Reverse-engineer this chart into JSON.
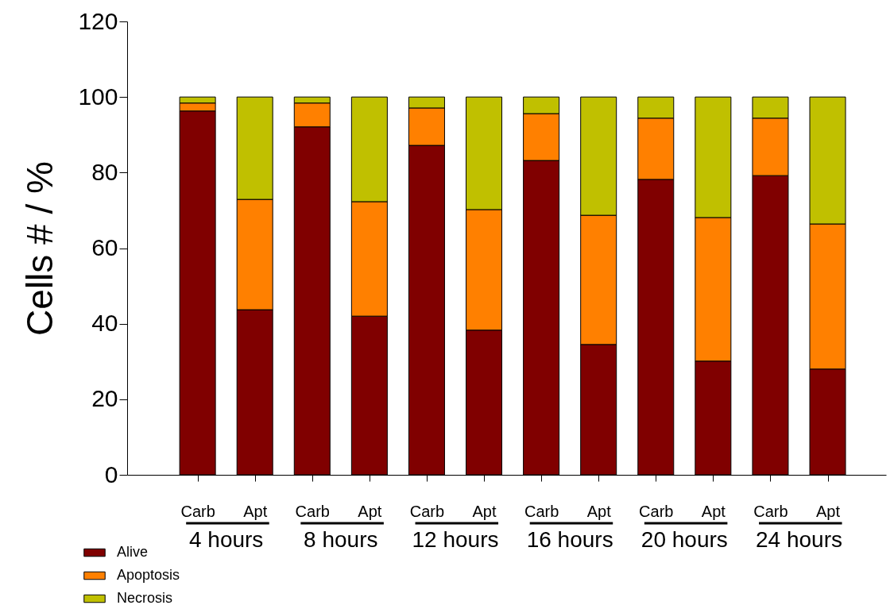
{
  "chart_data": {
    "type": "bar",
    "stacked": true,
    "ylabel": "Cells # / %",
    "categories": [
      "Carb",
      "Apt",
      "Carb",
      "Apt",
      "Carb",
      "Apt",
      "Carb",
      "Apt",
      "Carb",
      "Apt",
      "Carb",
      "Apt"
    ],
    "series": [
      {
        "name": "Alive",
        "color": "#800000",
        "values": [
          96.3,
          43.7,
          92.1,
          42.0,
          87.2,
          38.3,
          83.2,
          34.5,
          78.2,
          30.1,
          79.2,
          28.0
        ]
      },
      {
        "name": "Apoptosis",
        "color": "#ff8000",
        "values": [
          2.1,
          29.2,
          6.3,
          30.3,
          9.9,
          31.9,
          12.4,
          34.2,
          16.2,
          38.0,
          15.2,
          38.4
        ]
      },
      {
        "name": "Necrosis",
        "color": "#c0c000",
        "values": [
          1.6,
          27.1,
          1.6,
          27.7,
          2.9,
          29.8,
          4.4,
          31.3,
          5.6,
          31.9,
          5.6,
          33.6
        ]
      }
    ],
    "annotations": [
      "4 hours",
      "8 hours",
      "12 hours",
      "16 hours",
      "20 hours",
      "24 hours"
    ],
    "ylim": [
      0,
      120
    ],
    "yticks": [
      0,
      20,
      40,
      60,
      80,
      100,
      120
    ],
    "grid": false,
    "legend": "bottom left"
  }
}
